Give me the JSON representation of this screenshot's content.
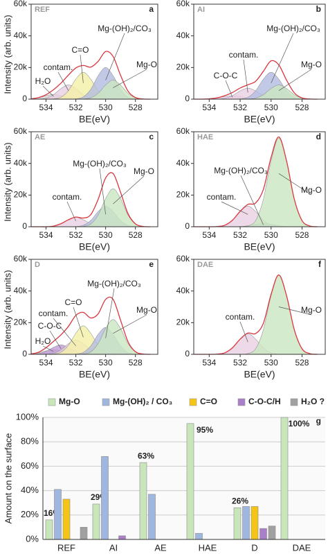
{
  "chart_data": [
    {
      "type": "xps",
      "label": "REF",
      "letter": "a",
      "xlabel": "BE(eV)",
      "ylabel": "Intensity (arb. units)",
      "x": [
        535,
        534.5,
        534,
        533.5,
        533,
        532.5,
        532,
        531.5,
        531,
        530.5,
        530,
        529.5,
        529,
        528.5,
        528,
        527.5,
        527
      ],
      "xlim": [
        535,
        526.5
      ],
      "xticks": [
        534,
        532,
        530,
        528
      ],
      "ylim": [
        0,
        60000
      ],
      "yticks": [
        0,
        {
          "value": 20000,
          "label": "20k"
        },
        {
          "value": 40000,
          "label": "40k"
        },
        {
          "value": 60000,
          "label": "60k"
        }
      ],
      "series": [
        {
          "name": "H₂O",
          "color": "#d4d4d4",
          "values": [
            200,
            900,
            2200,
            3000,
            2200,
            900,
            200,
            0,
            0,
            0,
            0,
            0,
            0,
            0,
            0,
            0,
            0
          ]
        },
        {
          "name": "contam.",
          "color": "#ead0e4",
          "values": [
            0,
            100,
            600,
            2800,
            6700,
            9000,
            6700,
            2800,
            600,
            100,
            0,
            0,
            0,
            0,
            0,
            0,
            0
          ]
        },
        {
          "name": "C=O",
          "color": "#f4f0a6",
          "values": [
            0,
            0,
            0,
            150,
            1200,
            5300,
            12600,
            17000,
            12600,
            5300,
            1200,
            150,
            0,
            0,
            0,
            0,
            0
          ]
        },
        {
          "name": "Mg-(OH)₂/CO₃",
          "color": "#b3bce0",
          "values": [
            0,
            0,
            0,
            0,
            0,
            0,
            200,
            1400,
            6200,
            14800,
            20000,
            14800,
            6200,
            1400,
            200,
            0,
            0
          ]
        },
        {
          "name": "Mg-O",
          "color": "#c9e7c1",
          "values": [
            0,
            0,
            0,
            0,
            0,
            0,
            0,
            100,
            840,
            3700,
            8900,
            12000,
            8900,
            3700,
            840,
            100,
            0
          ]
        }
      ],
      "envelope": {
        "color": "#d9363e",
        "values": [
          200,
          1000,
          2800,
          5950,
          10100,
          15200,
          19700,
          21300,
          20240,
          23900,
          30100,
          26950,
          15100,
          5100,
          1040,
          100,
          0
        ]
      }
    },
    {
      "type": "xps",
      "label": "AI",
      "letter": "b",
      "xlabel": "BE(eV)",
      "x": [
        535,
        534.5,
        534,
        533.5,
        533,
        532.5,
        532,
        531.5,
        531,
        530.5,
        530,
        529.5,
        529,
        528.5,
        528,
        527.5,
        527
      ],
      "xlim": [
        535,
        526.5
      ],
      "xticks": [
        534,
        532,
        530,
        528
      ],
      "ylim": [
        0,
        60000
      ],
      "yticks": [
        0,
        {
          "value": 20000,
          "label": "20k"
        },
        {
          "value": 40000,
          "label": "40k"
        },
        {
          "value": 60000,
          "label": "60k"
        }
      ],
      "series": [
        {
          "name": "C-O-C",
          "color": "#e6c8e6",
          "values": [
            0,
            0,
            200,
            800,
            1700,
            2000,
            1700,
            800,
            200,
            0,
            0,
            0,
            0,
            0,
            0,
            0,
            0
          ]
        },
        {
          "name": "contam.",
          "color": "#ead0e4",
          "values": [
            0,
            0,
            0,
            0,
            500,
            2200,
            5200,
            7000,
            5200,
            2200,
            500,
            0,
            0,
            0,
            0,
            0,
            0
          ]
        },
        {
          "name": "Mg-(OH)₂/CO₃",
          "color": "#b3bce0",
          "values": [
            0,
            0,
            0,
            0,
            0,
            0,
            150,
            1200,
            5300,
            12600,
            17000,
            12600,
            5300,
            1200,
            150,
            0,
            0
          ]
        },
        {
          "name": "Mg-O",
          "color": "#c9e7c1",
          "values": [
            0,
            0,
            0,
            0,
            0,
            0,
            0,
            100,
            600,
            2800,
            6700,
            9000,
            6700,
            2800,
            600,
            100,
            0
          ]
        }
      ],
      "envelope": {
        "color": "#d9363e",
        "values": [
          0,
          0,
          200,
          800,
          2200,
          4200,
          7050,
          9100,
          11300,
          17600,
          24200,
          21600,
          12000,
          4000,
          750,
          100,
          0
        ]
      }
    },
    {
      "type": "xps",
      "label": "AE",
      "letter": "c",
      "xlabel": "BE(eV)",
      "ylabel": "Intensity (arb. units)",
      "x": [
        535,
        534.5,
        534,
        533.5,
        533,
        532.5,
        532,
        531.5,
        531,
        530.5,
        530,
        529.5,
        529,
        528.5,
        528,
        527.5,
        527
      ],
      "xlim": [
        535,
        526.5
      ],
      "xticks": [
        534,
        532,
        530,
        528
      ],
      "ylim": [
        0,
        60000
      ],
      "yticks": [
        0,
        {
          "value": 20000,
          "label": "20k"
        },
        {
          "value": 40000,
          "label": "40k"
        },
        {
          "value": 60000,
          "label": "60k"
        }
      ],
      "series": [
        {
          "name": "contam.",
          "color": "#ead0e4",
          "values": [
            0,
            0,
            0,
            400,
            1900,
            4400,
            6000,
            4400,
            1900,
            400,
            0,
            0,
            0,
            0,
            0,
            0,
            0
          ]
        },
        {
          "name": "Mg-(OH)₂/CO₃",
          "color": "#b3bce0",
          "values": [
            0,
            0,
            0,
            0,
            0,
            0,
            120,
            900,
            4000,
            9600,
            13000,
            9600,
            4000,
            900,
            120,
            0,
            0
          ]
        },
        {
          "name": "Mg-O",
          "color": "#c9e7c1",
          "values": [
            0,
            0,
            0,
            0,
            0,
            0,
            0,
            200,
            1700,
            7400,
            17800,
            24000,
            17800,
            7400,
            1700,
            200,
            0
          ]
        }
      ],
      "envelope": {
        "color": "#d9363e",
        "values": [
          0,
          0,
          0,
          400,
          1900,
          4400,
          6120,
          5500,
          7600,
          17400,
          30800,
          33600,
          21800,
          8300,
          1820,
          200,
          0
        ]
      }
    },
    {
      "type": "xps",
      "label": "HAE",
      "letter": "d",
      "xlabel": "BE(eV)",
      "x": [
        535,
        534.5,
        534,
        533.5,
        533,
        532.5,
        532,
        531.5,
        531,
        530.5,
        530,
        529.5,
        529,
        528.5,
        528,
        527.5,
        527
      ],
      "xlim": [
        535,
        526.5
      ],
      "xticks": [
        534,
        532,
        530,
        528
      ],
      "ylim": [
        0,
        60000
      ],
      "yticks": [
        0,
        {
          "value": 20000,
          "label": "20k"
        },
        {
          "value": 40000,
          "label": "40k"
        },
        {
          "value": 60000,
          "label": "60k"
        }
      ],
      "series": [
        {
          "name": "contam.",
          "color": "#ead0e4",
          "values": [
            0,
            0,
            0,
            120,
            900,
            4100,
            9600,
            13000,
            9600,
            4100,
            900,
            120,
            0,
            0,
            0,
            0,
            0
          ]
        },
        {
          "name": "Mg-(OH)₂/CO₃",
          "color": "#b3bce0",
          "values": [
            0,
            0,
            0,
            0,
            0,
            0,
            140,
            600,
            1500,
            2000,
            1500,
            600,
            140,
            0,
            0,
            0,
            0
          ]
        },
        {
          "name": "Mg-O",
          "color": "#c9e7c1",
          "values": [
            0,
            0,
            0,
            0,
            0,
            0,
            0,
            500,
            3900,
            17400,
            41400,
            56000,
            41400,
            17400,
            3900,
            500,
            0
          ]
        }
      ],
      "envelope": {
        "color": "#d9363e",
        "values": [
          0,
          0,
          0,
          120,
          900,
          4100,
          9740,
          14100,
          15000,
          23500,
          43800,
          56720,
          41540,
          17400,
          3900,
          500,
          0
        ]
      }
    },
    {
      "type": "xps",
      "label": "D",
      "letter": "e",
      "xlabel": "BE(eV)",
      "ylabel": "Intensity (arb. units)",
      "x": [
        535,
        534.5,
        534,
        533.5,
        533,
        532.5,
        532,
        531.5,
        531,
        530.5,
        530,
        529.5,
        529,
        528.5,
        528,
        527.5,
        527
      ],
      "xlim": [
        535,
        526.5
      ],
      "xticks": [
        534,
        532,
        530,
        528
      ],
      "ylim": [
        0,
        60000
      ],
      "yticks": [
        0,
        {
          "value": 20000,
          "label": "20k"
        },
        {
          "value": 40000,
          "label": "40k"
        },
        {
          "value": 60000,
          "label": "60k"
        }
      ],
      "series": [
        {
          "name": "H₂O",
          "color": "#d4d4d4",
          "values": [
            200,
            900,
            2200,
            3000,
            2200,
            900,
            200,
            0,
            0,
            0,
            0,
            0,
            0,
            0,
            0,
            0,
            0
          ]
        },
        {
          "name": "C-O-C",
          "color": "#c29ad6",
          "values": [
            50,
            400,
            1900,
            4400,
            6000,
            4400,
            1900,
            400,
            50,
            0,
            0,
            0,
            0,
            0,
            0,
            0,
            0
          ]
        },
        {
          "name": "contam.",
          "color": "#ead0e4",
          "values": [
            0,
            0,
            80,
            600,
            2800,
            6700,
            9000,
            6700,
            2800,
            600,
            80,
            0,
            0,
            0,
            0,
            0,
            0
          ]
        },
        {
          "name": "C=O",
          "color": "#f4f0a6",
          "values": [
            0,
            0,
            0,
            170,
            1300,
            5600,
            13300,
            18000,
            13300,
            5600,
            1300,
            170,
            0,
            0,
            0,
            0,
            0
          ]
        },
        {
          "name": "Mg-(OH)₂/CO₃",
          "color": "#b3bce0",
          "values": [
            0,
            0,
            0,
            0,
            0,
            0,
            150,
            1200,
            5300,
            12600,
            17000,
            12600,
            5300,
            1200,
            150,
            0,
            0
          ]
        },
        {
          "name": "Mg-O",
          "color": "#c9e7c1",
          "values": [
            0,
            0,
            0,
            0,
            0,
            0,
            0,
            200,
            1500,
            6800,
            16300,
            22000,
            16300,
            6800,
            1500,
            200,
            0
          ]
        }
      ],
      "envelope": {
        "color": "#d9363e",
        "values": [
          250,
          1300,
          4180,
          8170,
          12300,
          17600,
          24550,
          26500,
          22950,
          25600,
          34680,
          34770,
          21600,
          8000,
          1650,
          200,
          0
        ]
      }
    },
    {
      "type": "xps",
      "label": "DAE",
      "letter": "f",
      "xlabel": "BE(eV)",
      "x": [
        535,
        534.5,
        534,
        533.5,
        533,
        532.5,
        532,
        531.5,
        531,
        530.5,
        530,
        529.5,
        529,
        528.5,
        528,
        527.5,
        527
      ],
      "xlim": [
        535,
        526.5
      ],
      "xticks": [
        534,
        532,
        530,
        528
      ],
      "ylim": [
        0,
        60000
      ],
      "yticks": [
        0,
        {
          "value": 20000,
          "label": "20k"
        },
        {
          "value": 40000,
          "label": "40k"
        },
        {
          "value": 60000,
          "label": "60k"
        }
      ],
      "series": [
        {
          "name": "contam.",
          "color": "#ead0e4",
          "values": [
            0,
            0,
            0,
            120,
            900,
            4100,
            9600,
            13000,
            9600,
            4100,
            900,
            120,
            0,
            0,
            0,
            0,
            0
          ]
        },
        {
          "name": "Mg-O",
          "color": "#c9e7c1",
          "values": [
            0,
            0,
            0,
            0,
            0,
            0,
            0,
            450,
            3500,
            15500,
            37000,
            50000,
            37000,
            15500,
            3500,
            450,
            0
          ]
        }
      ],
      "envelope": {
        "color": "#d9363e",
        "values": [
          0,
          0,
          0,
          120,
          900,
          4100,
          9600,
          13450,
          13100,
          19600,
          37900,
          50120,
          37000,
          15500,
          3500,
          450,
          0
        ]
      }
    },
    {
      "type": "bar",
      "letter": "g",
      "ylabel": "Amount on the surface",
      "categories": [
        "REF",
        "AI",
        "AE",
        "HAE",
        "D",
        "DAE"
      ],
      "ylim": [
        0,
        100
      ],
      "yticks": [
        {
          "value": 0,
          "label": "0%"
        },
        {
          "value": 20,
          "label": "20%"
        },
        {
          "value": 40,
          "label": "40%"
        },
        {
          "value": 60,
          "label": "60%"
        },
        {
          "value": 80,
          "label": "80%"
        },
        {
          "value": 100,
          "label": "100%"
        }
      ],
      "grid": true,
      "legend": "top",
      "series": [
        {
          "name": "Mg-O",
          "color": "#c8e6ba",
          "values": [
            16,
            29,
            63,
            95,
            26,
            100
          ],
          "value_labels": [
            "16%",
            "29%",
            "63%",
            "95%",
            "26%",
            "100%"
          ]
        },
        {
          "name": "Mg-(OH)₂ / CO₃",
          "color": "#9fb6de",
          "values": [
            41,
            68,
            37,
            5,
            27,
            null
          ]
        },
        {
          "name": "C=O",
          "color": "#f6c416",
          "values": [
            33,
            null,
            null,
            null,
            27,
            null
          ]
        },
        {
          "name": "C-O-C/H",
          "color": "#a87fc8",
          "values": [
            null,
            3,
            null,
            null,
            9,
            null
          ]
        },
        {
          "name": "H₂O ?",
          "color": "#a0a0a0",
          "values": [
            10,
            null,
            null,
            null,
            11,
            null
          ]
        }
      ]
    }
  ]
}
